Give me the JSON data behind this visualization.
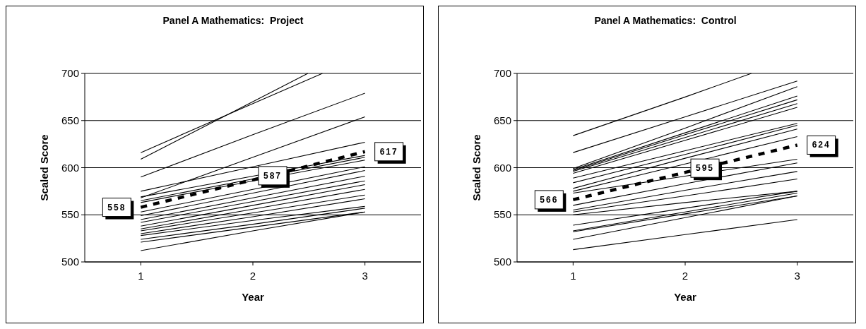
{
  "chart_data": [
    {
      "type": "line",
      "title": "Panel A Mathematics:  Project",
      "xlabel": "Year",
      "ylabel": "Scaled Score",
      "x": [
        1,
        2,
        3
      ],
      "xlim": [
        0.5,
        3.5
      ],
      "xticks": [
        1,
        2,
        3
      ],
      "ylim": [
        500,
        700
      ],
      "yticks": [
        500,
        550,
        600,
        650,
        700
      ],
      "grid": "y",
      "marker": "none",
      "line_style": "solid",
      "series": [
        {
          "color": "#000000",
          "x": [
            1,
            2,
            2.49
          ],
          "values": [
            609,
            670,
            700
          ]
        },
        {
          "color": "#000000",
          "x": [
            1,
            2,
            2.62
          ],
          "values": [
            616,
            668,
            700
          ]
        },
        {
          "color": "#000000",
          "values": [
            590,
            635,
            679
          ]
        },
        {
          "color": "#000000",
          "values": [
            568,
            611,
            654
          ]
        },
        {
          "color": "#000000",
          "values": [
            575,
            601,
            627
          ]
        },
        {
          "color": "#000000",
          "values": [
            569,
            591,
            613
          ]
        },
        {
          "color": "#000000",
          "values": [
            565,
            588,
            611
          ]
        },
        {
          "color": "#000000",
          "values": [
            563,
            586,
            608
          ]
        },
        {
          "color": "#000000",
          "values": [
            553,
            577,
            601
          ]
        },
        {
          "color": "#000000",
          "values": [
            549,
            573,
            597
          ]
        },
        {
          "color": "#000000",
          "values": [
            545,
            568,
            591
          ]
        },
        {
          "color": "#000000",
          "values": [
            542,
            564,
            586
          ]
        },
        {
          "color": "#000000",
          "values": [
            538,
            560,
            582
          ]
        },
        {
          "color": "#000000",
          "values": [
            535,
            556,
            577
          ]
        },
        {
          "color": "#000000",
          "values": [
            533,
            552,
            571
          ]
        },
        {
          "color": "#000000",
          "values": [
            530,
            548,
            567
          ]
        },
        {
          "color": "#000000",
          "values": [
            528,
            544,
            559
          ]
        },
        {
          "color": "#000000",
          "values": [
            524,
            540,
            557
          ]
        },
        {
          "color": "#000000",
          "values": [
            521,
            537,
            553
          ]
        },
        {
          "color": "#000000",
          "values": [
            512,
            533,
            553
          ]
        },
        {
          "color": "#000000",
          "line_style": "dashed",
          "values": [
            558,
            587,
            617
          ],
          "value_labels": [
            "558",
            "587",
            "617"
          ]
        }
      ]
    },
    {
      "type": "line",
      "title": "Panel A Mathematics:  Control",
      "xlabel": "Year",
      "ylabel": "Scaled Score",
      "x": [
        1,
        2,
        3
      ],
      "xlim": [
        0.5,
        3.5
      ],
      "xticks": [
        1,
        2,
        3
      ],
      "ylim": [
        500,
        700
      ],
      "yticks": [
        500,
        550,
        600,
        650,
        700
      ],
      "grid": "y",
      "marker": "none",
      "line_style": "solid",
      "series": [
        {
          "color": "#000000",
          "x": [
            1,
            2,
            2.59
          ],
          "values": [
            634,
            675,
            700
          ]
        },
        {
          "color": "#000000",
          "values": [
            616,
            654,
            692
          ]
        },
        {
          "color": "#000000",
          "values": [
            599,
            642,
            686
          ]
        },
        {
          "color": "#000000",
          "values": [
            598,
            637,
            676
          ]
        },
        {
          "color": "#000000",
          "values": [
            597,
            635,
            672
          ]
        },
        {
          "color": "#000000",
          "values": [
            596,
            632,
            668
          ]
        },
        {
          "color": "#000000",
          "values": [
            594,
            629,
            664
          ]
        },
        {
          "color": "#000000",
          "values": [
            589,
            618,
            647
          ]
        },
        {
          "color": "#000000",
          "values": [
            584,
            614,
            645
          ]
        },
        {
          "color": "#000000",
          "values": [
            578,
            610,
            641
          ]
        },
        {
          "color": "#000000",
          "values": [
            575,
            604,
            633
          ]
        },
        {
          "color": "#000000",
          "values": [
            573,
            591,
            609
          ]
        },
        {
          "color": "#000000",
          "values": [
            560,
            583,
            605
          ]
        },
        {
          "color": "#000000",
          "values": [
            555,
            576,
            596
          ]
        },
        {
          "color": "#000000",
          "values": [
            553,
            570,
            588
          ]
        },
        {
          "color": "#000000",
          "values": [
            550,
            563,
            575
          ]
        },
        {
          "color": "#000000",
          "values": [
            539,
            557,
            575
          ]
        },
        {
          "color": "#000000",
          "values": [
            533,
            553,
            573
          ]
        },
        {
          "color": "#000000",
          "values": [
            532,
            551,
            570
          ]
        },
        {
          "color": "#000000",
          "values": [
            524,
            547,
            570
          ]
        },
        {
          "color": "#000000",
          "values": [
            513,
            529,
            545
          ]
        },
        {
          "color": "#000000",
          "line_style": "dashed",
          "values": [
            566,
            595,
            624
          ],
          "value_labels": [
            "566",
            "595",
            "624"
          ]
        }
      ]
    }
  ]
}
